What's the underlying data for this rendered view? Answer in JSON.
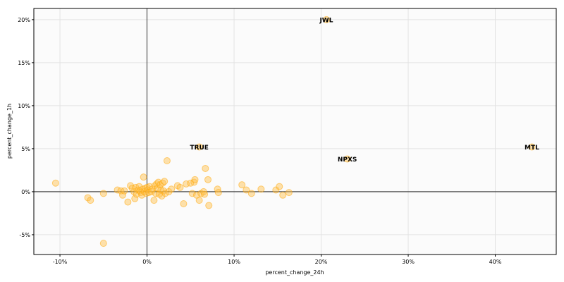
{
  "chart_data": {
    "type": "scatter",
    "title": "",
    "xlabel": "percent_change_24h",
    "ylabel": "percent_change_1h",
    "xlim": [
      -13,
      47
    ],
    "ylim": [
      -7.3,
      21.3
    ],
    "xticks": [
      -10,
      0,
      10,
      20,
      30,
      40
    ],
    "yticks": [
      -5,
      0,
      5,
      10,
      15,
      20
    ],
    "xtick_labels": [
      "-10%",
      "0%",
      "10%",
      "20%",
      "30%",
      "40%"
    ],
    "ytick_labels": [
      "-5%",
      "0%",
      "5%",
      "10%",
      "15%",
      "20%"
    ],
    "grid": true,
    "reference_lines": {
      "x": 0,
      "y": 0
    },
    "colors": {
      "point_fill": "#ffbf47",
      "point_stroke": "#ffa500",
      "plot_bg": "#fbfbfb",
      "grid": "#e3e3e3"
    },
    "points": [
      [
        -10.5,
        1.0
      ],
      [
        -6.8,
        -0.7
      ],
      [
        -6.5,
        -1.0
      ],
      [
        -5.0,
        -0.2
      ],
      [
        -5.0,
        -6.0
      ],
      [
        -3.4,
        0.2
      ],
      [
        -3.0,
        0.1
      ],
      [
        -2.8,
        -0.4
      ],
      [
        -2.6,
        0.1
      ],
      [
        -2.2,
        -1.2
      ],
      [
        -1.9,
        0.7
      ],
      [
        -1.7,
        0.4
      ],
      [
        -1.5,
        0.0
      ],
      [
        -1.4,
        -0.8
      ],
      [
        -1.3,
        0.5
      ],
      [
        -1.2,
        -0.3
      ],
      [
        -1.0,
        0.2
      ],
      [
        -0.9,
        0.6
      ],
      [
        -0.8,
        0.1
      ],
      [
        -0.7,
        -0.1
      ],
      [
        -0.6,
        -0.4
      ],
      [
        -0.5,
        0.3
      ],
      [
        -0.4,
        1.7
      ],
      [
        -0.3,
        0.0
      ],
      [
        -0.2,
        0.4
      ],
      [
        -0.1,
        -0.2
      ],
      [
        0.0,
        0.5
      ],
      [
        0.1,
        0.2
      ],
      [
        0.2,
        -0.1
      ],
      [
        0.3,
        0.6
      ],
      [
        0.5,
        0.0
      ],
      [
        0.6,
        0.3
      ],
      [
        0.8,
        -1.0
      ],
      [
        0.9,
        0.7
      ],
      [
        1.0,
        -0.2
      ],
      [
        1.1,
        0.9
      ],
      [
        1.2,
        0.4
      ],
      [
        1.3,
        1.1
      ],
      [
        1.4,
        -0.3
      ],
      [
        1.5,
        0.8
      ],
      [
        1.6,
        0.2
      ],
      [
        1.7,
        -0.5
      ],
      [
        1.8,
        1.0
      ],
      [
        1.9,
        0.1
      ],
      [
        2.0,
        1.2
      ],
      [
        2.1,
        -0.2
      ],
      [
        2.3,
        3.6
      ],
      [
        2.5,
        0.0
      ],
      [
        2.8,
        0.3
      ],
      [
        3.5,
        0.7
      ],
      [
        3.8,
        0.5
      ],
      [
        4.2,
        -1.4
      ],
      [
        4.5,
        0.9
      ],
      [
        5.0,
        1.0
      ],
      [
        5.2,
        -0.2
      ],
      [
        5.4,
        1.1
      ],
      [
        5.5,
        1.4
      ],
      [
        5.7,
        -0.4
      ],
      [
        6.0,
        -1.0
      ],
      [
        6.2,
        -0.2
      ],
      [
        6.5,
        0.0
      ],
      [
        6.6,
        -0.3
      ],
      [
        6.7,
        2.7
      ],
      [
        7.0,
        1.4
      ],
      [
        7.1,
        -1.6
      ],
      [
        8.1,
        0.3
      ],
      [
        8.2,
        -0.1
      ],
      [
        10.9,
        0.8
      ],
      [
        11.4,
        0.2
      ],
      [
        12.0,
        -0.2
      ],
      [
        13.1,
        0.3
      ],
      [
        14.8,
        0.2
      ],
      [
        15.2,
        0.6
      ],
      [
        15.6,
        -0.4
      ],
      [
        16.3,
        -0.1
      ]
    ],
    "annotations": [
      {
        "label": "JWL",
        "x": 20.6,
        "y": 20.0
      },
      {
        "label": "TRUE",
        "x": 6.0,
        "y": 5.2
      },
      {
        "label": "NPXS",
        "x": 23.0,
        "y": 3.8
      },
      {
        "label": "MTL",
        "x": 44.2,
        "y": 5.2
      }
    ]
  }
}
